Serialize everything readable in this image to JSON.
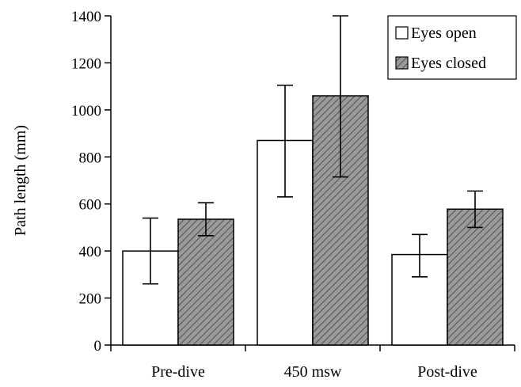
{
  "chart_data": {
    "type": "bar",
    "title": "",
    "xlabel": "",
    "ylabel": "Path length (mm)",
    "ylim": [
      0,
      1400
    ],
    "yticks": [
      0,
      200,
      400,
      600,
      800,
      1000,
      1200,
      1400
    ],
    "categories": [
      "Pre-dive",
      "450 msw",
      "Post-dive"
    ],
    "series": [
      {
        "name": "Eyes open",
        "fill": "white",
        "values": [
          400,
          870,
          385
        ],
        "error": [
          [
            260,
            540
          ],
          [
            630,
            1105
          ],
          [
            290,
            470
          ]
        ]
      },
      {
        "name": "Eyes closed",
        "fill": "hatched-gray",
        "values": [
          535,
          1060,
          578
        ],
        "error": [
          [
            465,
            605
          ],
          [
            715,
            1400
          ],
          [
            500,
            655
          ]
        ]
      }
    ],
    "legend_position": "top-right",
    "grid": false
  },
  "colors": {
    "open_fill": "#ffffff",
    "closed_fill": "#8c8c8c",
    "stroke": "#000000"
  }
}
